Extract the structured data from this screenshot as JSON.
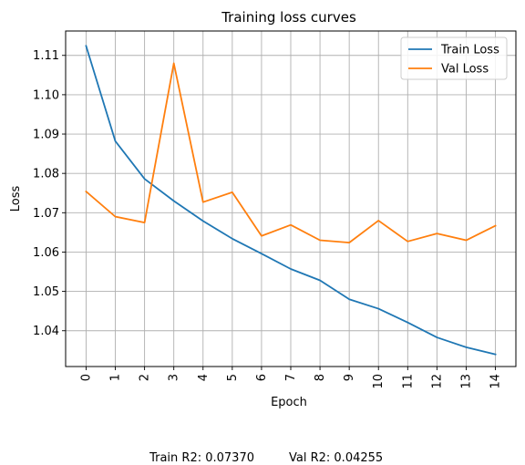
{
  "chart_data": {
    "type": "line",
    "title": "Training loss curves",
    "xlabel": "Epoch",
    "ylabel": "Loss",
    "x": [
      0,
      1,
      2,
      3,
      4,
      5,
      6,
      7,
      8,
      9,
      10,
      11,
      12,
      13,
      14
    ],
    "xlim": [
      -0.7,
      14.7
    ],
    "ylim": [
      1.0309,
      1.1162
    ],
    "yticks": [
      1.04,
      1.05,
      1.06,
      1.07,
      1.08,
      1.09,
      1.1,
      1.11
    ],
    "ytick_labels": [
      "1.04",
      "1.05",
      "1.06",
      "1.07",
      "1.08",
      "1.09",
      "1.10",
      "1.11"
    ],
    "grid": true,
    "legend_position": "top-right",
    "series": [
      {
        "name": "Train Loss",
        "color": "#1f77b4",
        "values": [
          1.1124,
          1.0882,
          1.0786,
          1.073,
          1.0679,
          1.0634,
          1.0596,
          1.0557,
          1.0528,
          1.048,
          1.0456,
          1.0421,
          1.0383,
          1.0358,
          1.034
        ]
      },
      {
        "name": "Val Loss",
        "color": "#ff7f0e",
        "values": [
          1.0754,
          1.069,
          1.0675,
          1.108,
          1.0727,
          1.0752,
          1.0641,
          1.0669,
          1.063,
          1.0624,
          1.068,
          1.0627,
          1.0647,
          1.063,
          1.0667
        ]
      }
    ]
  },
  "footer": {
    "train_r2": "Train R2: 0.07370",
    "val_r2": "Val R2: 0.04255"
  }
}
